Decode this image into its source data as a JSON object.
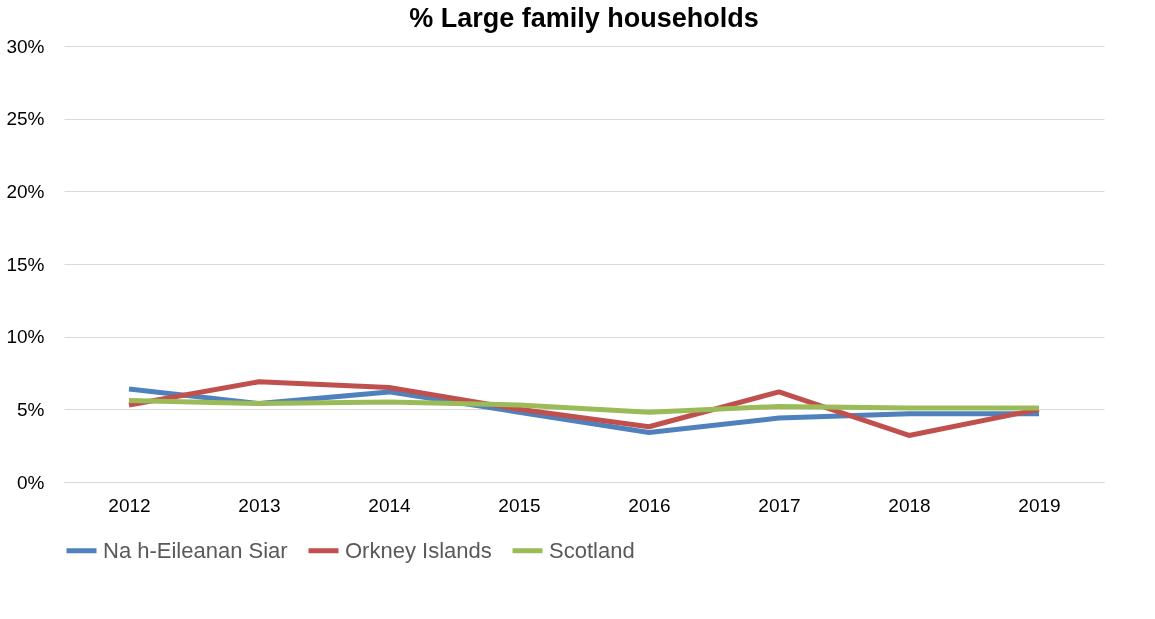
{
  "chart_data": {
    "type": "line",
    "title": "% Large family households",
    "categories": [
      "2012",
      "2013",
      "2014",
      "2015",
      "2016",
      "2017",
      "2018",
      "2019"
    ],
    "series": [
      {
        "name": "Na h-Eileanan Siar",
        "color": "#4f81bd",
        "values": [
          6.4,
          5.4,
          6.2,
          4.8,
          3.4,
          4.4,
          4.7,
          4.7
        ]
      },
      {
        "name": "Orkney Islands",
        "color": "#c0504d",
        "values": [
          5.3,
          6.9,
          6.5,
          5.0,
          3.8,
          6.2,
          3.2,
          5.0
        ]
      },
      {
        "name": "Scotland",
        "color": "#9bbb59",
        "values": [
          5.6,
          5.4,
          5.5,
          5.3,
          4.8,
          5.2,
          5.1,
          5.1
        ]
      }
    ],
    "ylim": [
      0,
      30
    ],
    "yticks": [
      {
        "value": 0,
        "label": "0%"
      },
      {
        "value": 5,
        "label": "5%"
      },
      {
        "value": 10,
        "label": "10%"
      },
      {
        "value": 15,
        "label": "15%"
      },
      {
        "value": 20,
        "label": "20%"
      },
      {
        "value": 25,
        "label": "25%"
      },
      {
        "value": 30,
        "label": "30%"
      }
    ],
    "grid": "y",
    "legend": "bottom",
    "marker": "none",
    "line_style": "solid"
  }
}
